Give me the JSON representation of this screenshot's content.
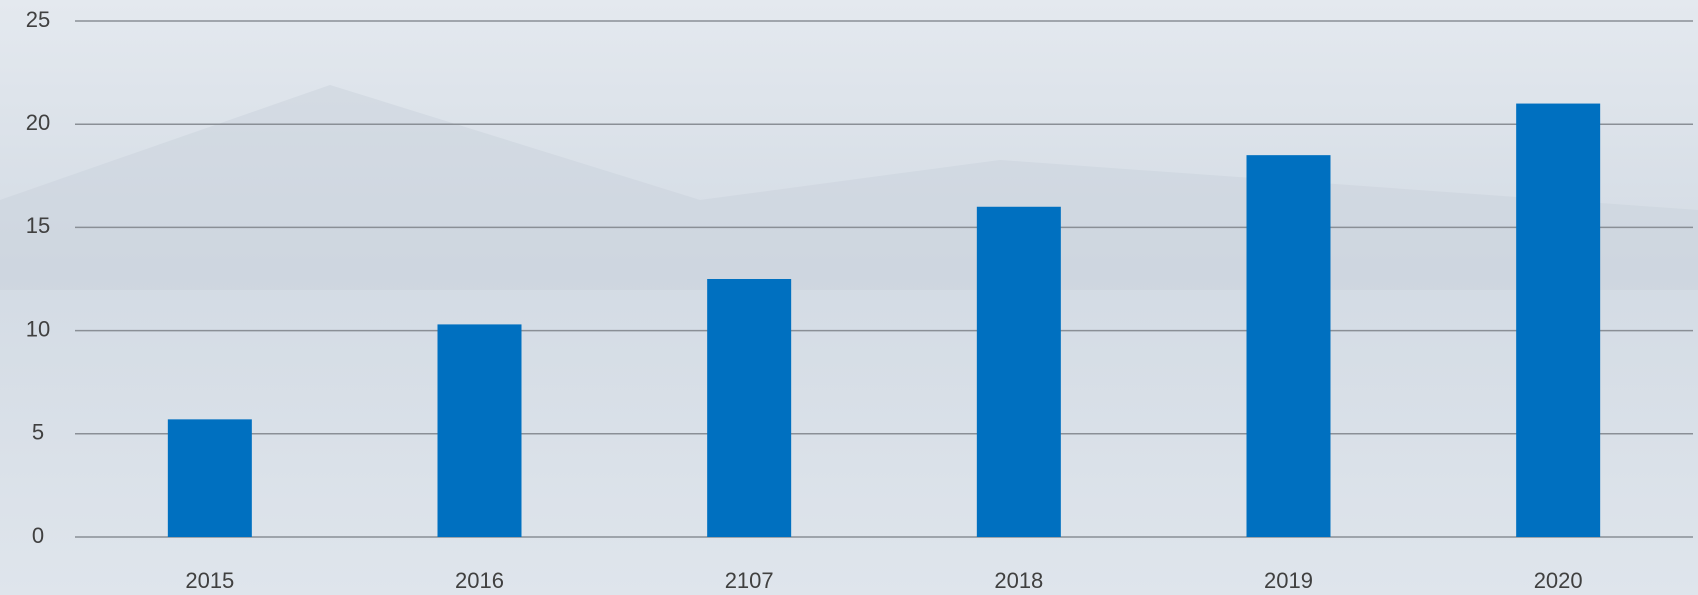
{
  "chart_data": {
    "type": "bar",
    "categories": [
      "2015",
      "2016",
      "2107",
      "2018",
      "2019",
      "2020"
    ],
    "values": [
      5.7,
      10.3,
      12.5,
      16,
      18.5,
      21
    ],
    "color": "#0070c0",
    "ylim": [
      0,
      25
    ],
    "yticks": [
      0,
      5,
      10,
      15,
      20,
      25
    ],
    "grid": true
  }
}
